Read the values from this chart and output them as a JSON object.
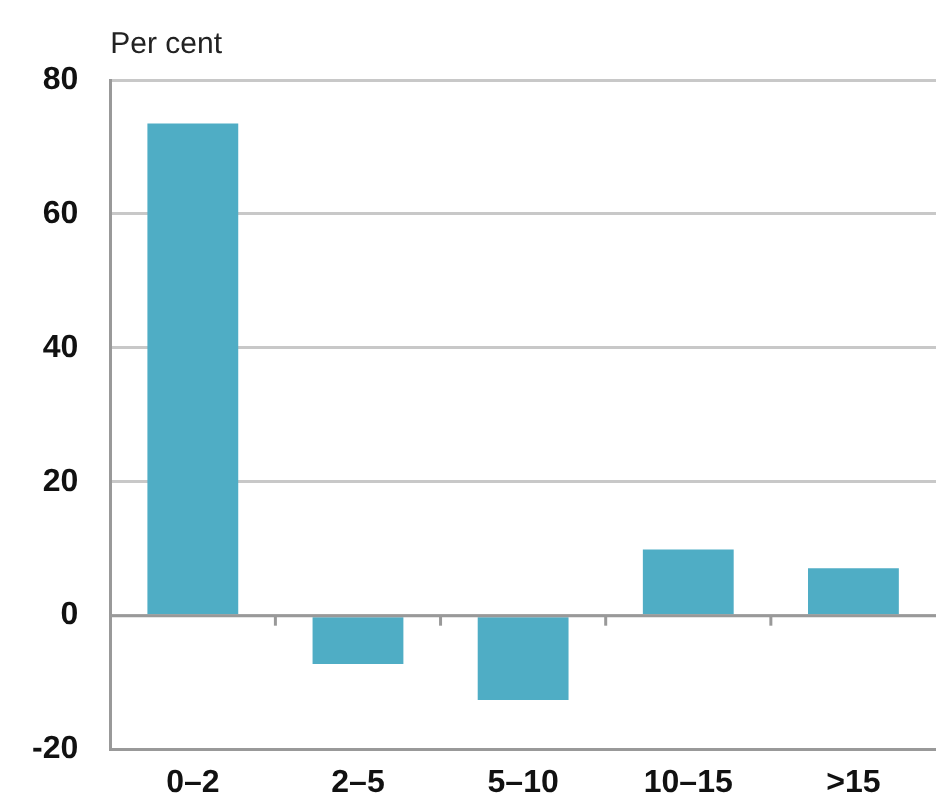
{
  "chart_data": {
    "type": "bar",
    "ylabel": "Per cent",
    "categories": [
      "0–2",
      "2–5",
      "5–10",
      "10–15",
      ">15"
    ],
    "values": [
      73.5,
      -7.2,
      -12.6,
      9.9,
      7.1
    ],
    "color": "#4fadc5",
    "ylim": [
      -20,
      80
    ],
    "yticks": [
      -20,
      0,
      20,
      40,
      60,
      80
    ],
    "grid": "y",
    "legend": false
  }
}
